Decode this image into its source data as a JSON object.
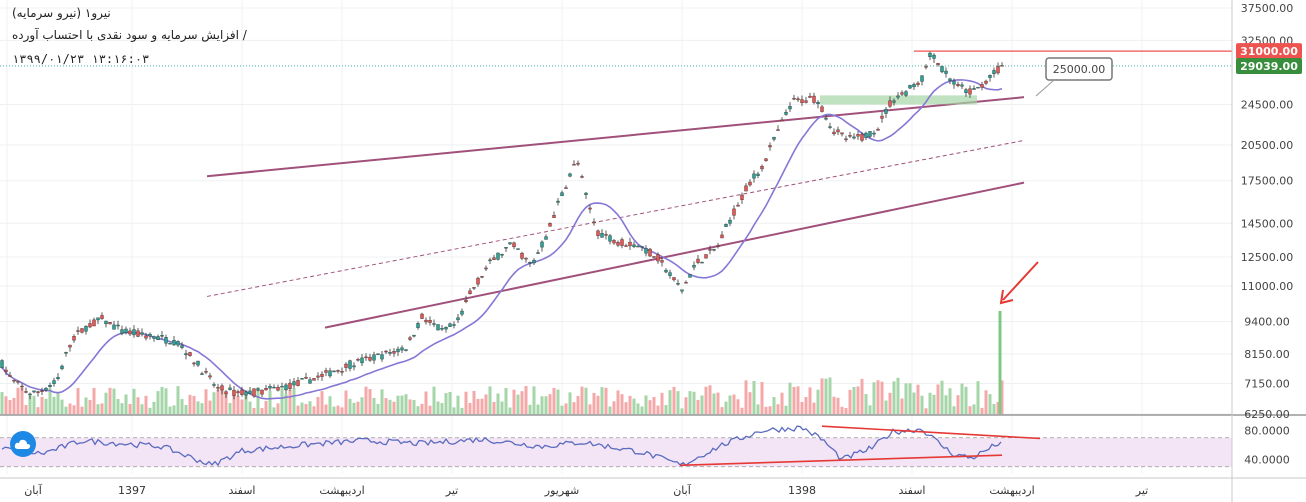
{
  "header": {
    "symbol_line": "نیرو۱ (نیرو سرمایه)",
    "desc_line": "/ افزایش سرمایه و سود نقدی با احتساب آورده",
    "date_line": "۱۳۹۹/۰۱/۲۳  ۱۳:۱۶:۰۳"
  },
  "chart_data": {
    "type": "candlestick",
    "price_axis": {
      "scale": "log",
      "range": [
        6250,
        37500
      ],
      "ticks": [
        "37500.00",
        "32500.00",
        "24500.00",
        "20500.00",
        "17500.00",
        "14500.00",
        "12500.00",
        "11000.00",
        "9400.00",
        "8150.00",
        "7150.00",
        "6250.00"
      ],
      "tick_values": [
        37500,
        32500,
        24500,
        20500,
        17500,
        14500,
        12500,
        11000,
        9400,
        8150,
        7150,
        6250
      ]
    },
    "price_labels": [
      {
        "text": "31000.00",
        "value": 31000,
        "color": "#ef5350"
      },
      {
        "text": "29039.00",
        "value": 29039,
        "color": "#388e3c"
      }
    ],
    "callout": {
      "text": "25000.00",
      "value": 25000
    },
    "x_axis": {
      "ticks": [
        "آبان",
        "1397",
        "اسفند",
        "اردیبهشت",
        "تیر",
        "شهریور",
        "آبان",
        "1398",
        "اسفند",
        "اردیبهشت",
        "تیر"
      ],
      "tick_index": [
        5,
        130,
        240,
        340,
        450,
        560,
        680,
        800,
        910,
        1010,
        1140
      ]
    },
    "rsi": {
      "range": [
        20,
        100
      ],
      "ticks": [
        "80.0000",
        "40.0000"
      ],
      "tick_values": [
        80,
        40
      ],
      "band": [
        70,
        30
      ]
    },
    "channel": {
      "upper": [
        [
          205,
          17850
        ],
        [
          1022,
          25300
        ]
      ],
      "lower": [
        [
          323,
          9150
        ],
        [
          1022,
          17350
        ]
      ],
      "mid": [
        [
          205,
          10500
        ],
        [
          1022,
          20900
        ]
      ]
    },
    "resistance_level": 31000,
    "support_zone": [
      24500,
      25500
    ],
    "colors": {
      "up": "#26a69a",
      "down": "#ef5350",
      "channel": "#a0507a",
      "ma": "#8577d6",
      "rsi": "#5b6bbf",
      "volume_up": "#a5d6a7",
      "volume_down": "#f4a8a8",
      "rsi_band": "#f3e5f5",
      "trend_line": "#e53935"
    }
  }
}
